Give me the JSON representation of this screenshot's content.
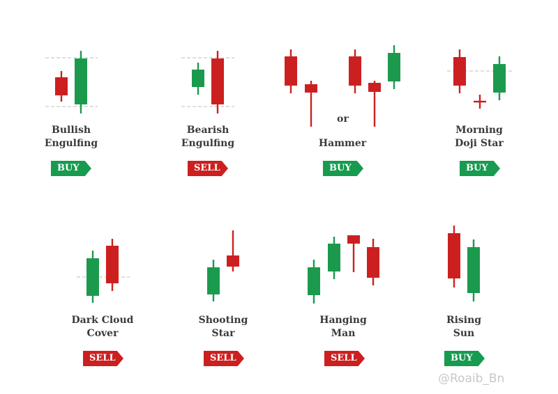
{
  "colors": {
    "bull": "#1b9a4e",
    "bear": "#cc2020",
    "wick_bull": "#1b9a4e",
    "wick_bear": "#cc2020",
    "guide": "#c9c9c9"
  },
  "patterns": [
    {
      "name_line1": "Bullish",
      "name_line2": "Engulfing",
      "signal": "BUY"
    },
    {
      "name_line1": "Bearish",
      "name_line2": "Engulfing",
      "signal": "SELL"
    },
    {
      "name_line1": "Hammer",
      "name_line2": "",
      "signal": "BUY",
      "or_text": "or"
    },
    {
      "name_line1": "Morning",
      "name_line2": "Doji Star",
      "signal": "BUY"
    },
    {
      "name_line1": "Dark Cloud",
      "name_line2": "Cover",
      "signal": "SELL"
    },
    {
      "name_line1": "Shooting",
      "name_line2": "Star",
      "signal": "SELL"
    },
    {
      "name_line1": "Hanging",
      "name_line2": "Man",
      "signal": "SELL"
    },
    {
      "name_line1": "Rising",
      "name_line2": "Sun",
      "signal": "BUY"
    }
  ],
  "watermark": "@Roaib_Bn"
}
